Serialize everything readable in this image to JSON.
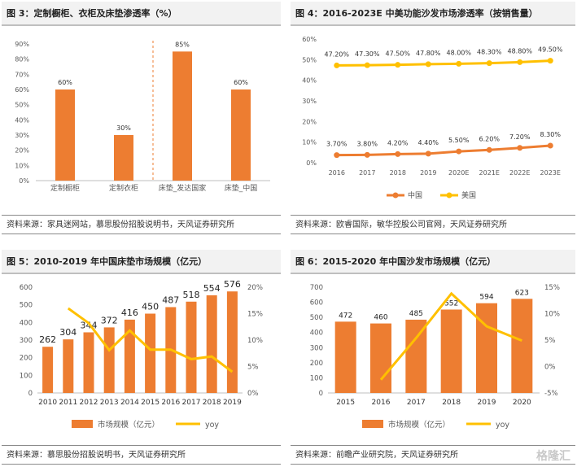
{
  "colors": {
    "orange": "#ED7D31",
    "yellow": "#FFC000",
    "axis": "#999999",
    "text": "#595959"
  },
  "watermark": "格隆汇",
  "panels": [
    {
      "title": "图 3：定制橱柜、衣柜及床垫渗透率（%）",
      "source": "资料来源：家具迷网站，慕思股份招股说明书，天风证券研究所"
    },
    {
      "title": "图 4：2016-2023E 中美功能沙发市场渗透率（按销售量）",
      "source": "资料来源：欧睿国际，敏华控股公司官网，天风证券研究所"
    },
    {
      "title": "图 5：2010-2019 年中国床垫市场规模（亿元）",
      "source": "资料来源：慕思股份招股说明书，天风证券研究所"
    },
    {
      "title": "图 6：2015-2020 年中国沙发市场规模（亿元）",
      "source": "资料来源：前瞻产业研究院，天风证券研究所"
    }
  ],
  "chart_data": [
    {
      "type": "bar",
      "categories": [
        "定制橱柜",
        "定制衣柜",
        "床垫_发达国家",
        "床垫_中国"
      ],
      "values": [
        60,
        30,
        85,
        60
      ],
      "data_labels": [
        "60%",
        "30%",
        "85%",
        "60%"
      ],
      "ylim": [
        0,
        90
      ],
      "yticks": [
        "0%",
        "10%",
        "20%",
        "30%",
        "40%",
        "50%",
        "60%",
        "70%",
        "80%",
        "90%"
      ],
      "divider": "dashed line between 定制衣柜 and 床垫_发达国家"
    },
    {
      "type": "line",
      "x": [
        "2016",
        "2017",
        "2018",
        "2019",
        "2020E",
        "2021E",
        "2022E",
        "2023E"
      ],
      "series": [
        {
          "name": "中国",
          "values": [
            3.7,
            3.8,
            4.2,
            4.4,
            5.5,
            6.2,
            7.2,
            8.3
          ],
          "labels": [
            "3.70%",
            "3.80%",
            "4.20%",
            "4.40%",
            "5.50%",
            "6.20%",
            "7.20%",
            "8.30%"
          ]
        },
        {
          "name": "美国",
          "values": [
            47.2,
            47.3,
            47.5,
            47.8,
            48.0,
            48.3,
            48.8,
            49.5
          ],
          "labels": [
            "47.20%",
            "47.30%",
            "47.50%",
            "47.80%",
            "48.00%",
            "48.30%",
            "48.80%",
            "49.50%"
          ]
        }
      ],
      "ylim": [
        0,
        60
      ],
      "yticks": [
        "0%",
        "10%",
        "20%",
        "30%",
        "40%",
        "50%",
        "60%"
      ],
      "legend": "bottom"
    },
    {
      "type": "bar",
      "x": [
        "2010",
        "2011",
        "2012",
        "2013",
        "2014",
        "2015",
        "2016",
        "2017",
        "2018",
        "2019"
      ],
      "series": [
        {
          "name": "市场规模（亿元）",
          "kind": "bar",
          "values": [
            262,
            304,
            344,
            372,
            416,
            450,
            487,
            518,
            554,
            576
          ]
        },
        {
          "name": "yoy",
          "kind": "line",
          "axis": "right",
          "values": [
            null,
            16.0,
            13.2,
            8.1,
            11.8,
            8.2,
            8.2,
            6.4,
            6.9,
            4.0
          ]
        }
      ],
      "ylim": [
        0,
        600
      ],
      "yticks": [
        "0",
        "100",
        "200",
        "300",
        "400",
        "500",
        "600"
      ],
      "y2lim": [
        0,
        20
      ],
      "y2ticks": [
        "0%",
        "5%",
        "10%",
        "15%",
        "20%"
      ],
      "legend": "bottom"
    },
    {
      "type": "bar",
      "x": [
        "2015",
        "2016",
        "2017",
        "2018",
        "2019",
        "2020"
      ],
      "series": [
        {
          "name": "市场规模（亿元）",
          "kind": "bar",
          "values": [
            472,
            460,
            485,
            552,
            594,
            623
          ]
        },
        {
          "name": "yoy",
          "kind": "line",
          "axis": "right",
          "values": [
            null,
            -2.5,
            5.4,
            13.8,
            7.6,
            4.9
          ]
        }
      ],
      "ylim": [
        0,
        700
      ],
      "yticks": [
        "0",
        "100",
        "200",
        "300",
        "400",
        "500",
        "600",
        "700"
      ],
      "y2lim": [
        -5,
        15
      ],
      "y2ticks": [
        "-5%",
        "0%",
        "5%",
        "10%",
        "15%"
      ],
      "legend": "bottom"
    }
  ]
}
